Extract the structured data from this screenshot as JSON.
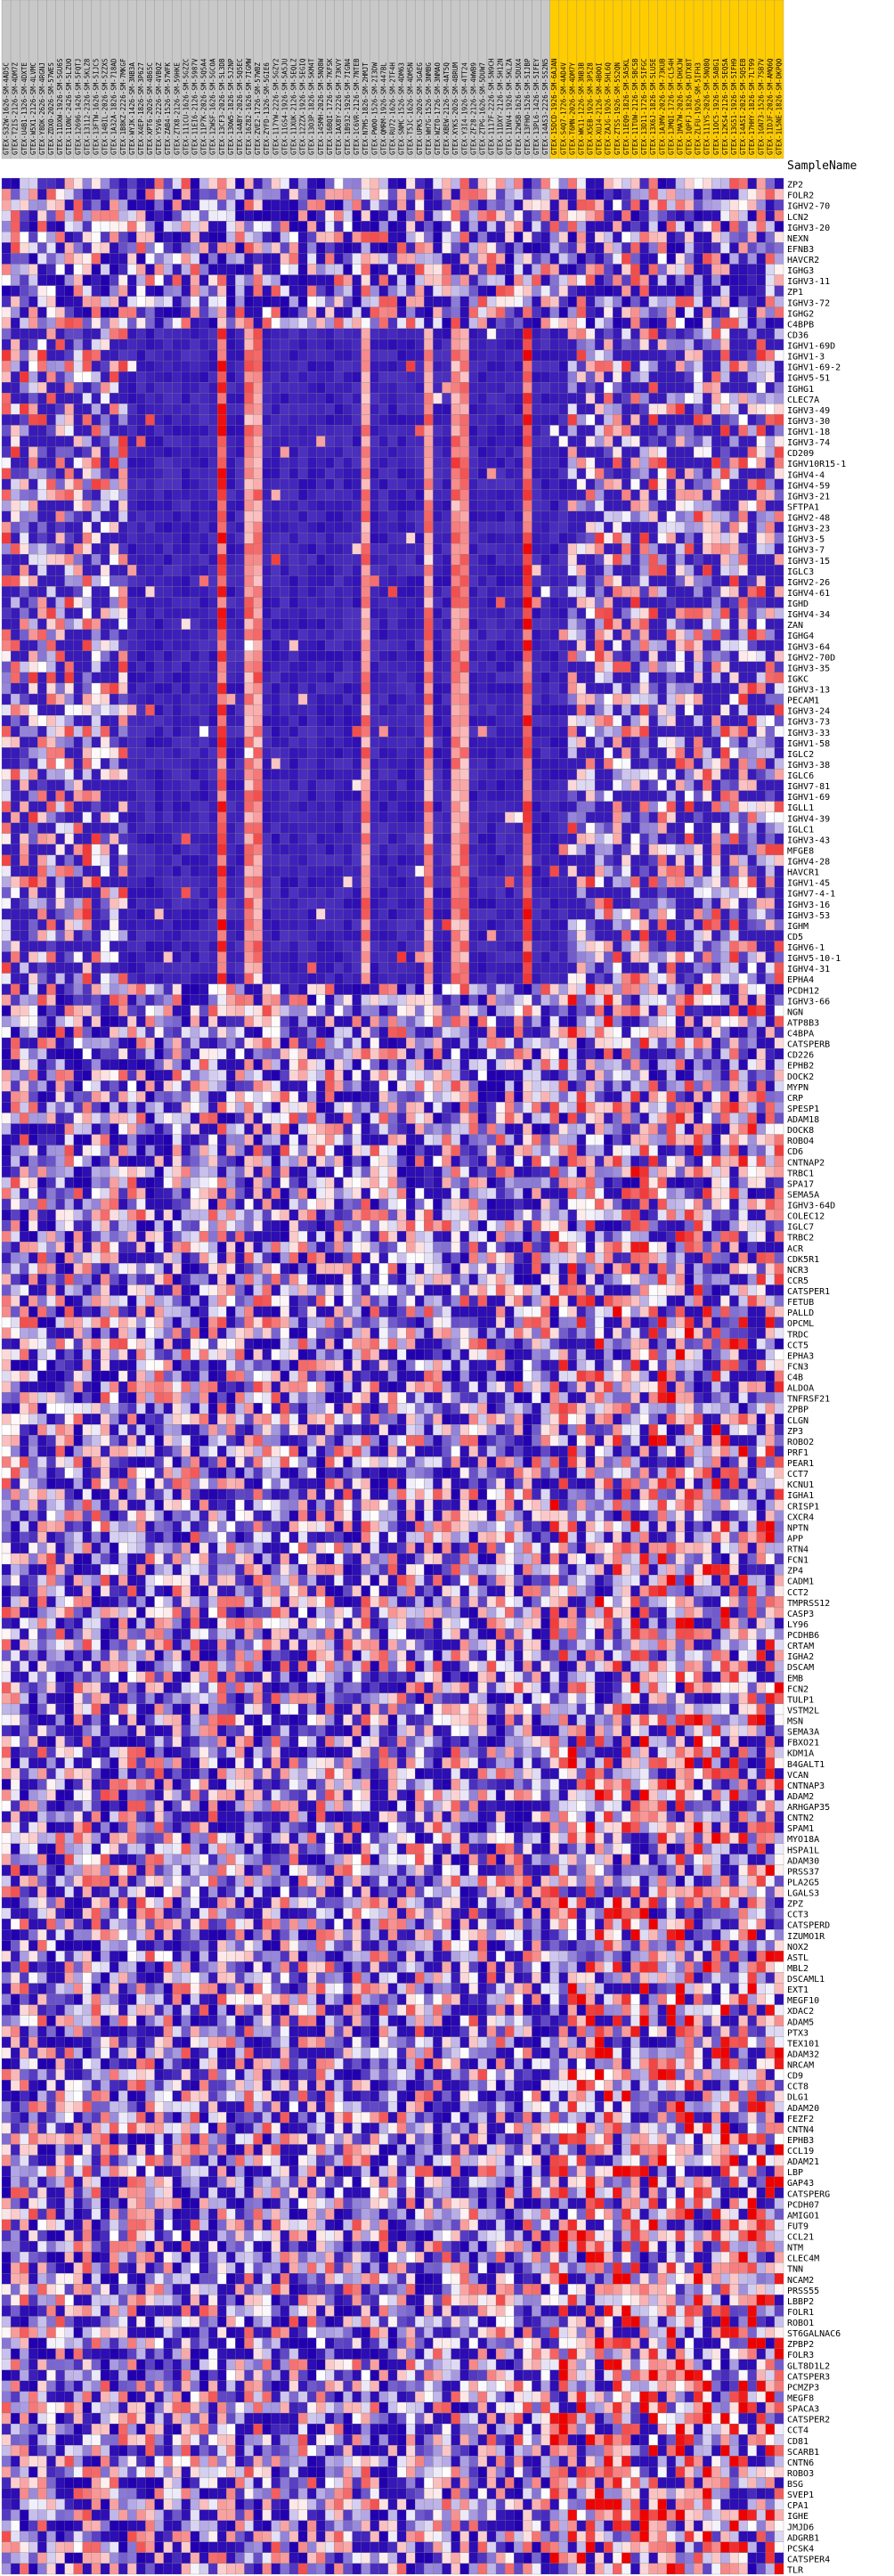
{
  "sample_name_label": "SampleName",
  "column_labels": [
    "GTEX-S32W-1626-SM-4AD5C",
    "GTEX-T2IS-2126-SM-4DM7Z",
    "GTEX-U4B1-1326-SM-4DXTE",
    "GTEX-W5X1-2126-SM-4LVMC",
    "GTEX-Y8DK-2626-SM-4RGNJ",
    "GTEX-ZDXO-2026-SM-57WES",
    "GTEX-11DXW-1926-SM-5GU6S",
    "GTEX-11ONC-2426-SM-5LZUO",
    "GTEX-12696-1426-SM-5FQTJ",
    "GTEX-13112-2326-SM-5KLZ8",
    "GTEX-13FTW-1626-SM-5IJC5",
    "GTEX-14BIL-2026-SM-5ZZXS",
    "GTEX-1A32A-1826-SM-718AD",
    "GTEX-1B8KZ-2226-SM-7MKGF",
    "GTEX-WYJK-1426-SM-3NB3A",
    "GTEX-X4EP-1826-SM-3P627",
    "GTEX-XPT6-2026-SM-4B65C",
    "GTEX-Y5V6-2226-SM-4VBQZ",
    "GTEX-ZAB4-1526-SM-57WFK",
    "GTEX-ZTX8-2126-SM-59HKE",
    "GTEX-111CU-1626-SM-5GZZC",
    "GTEX-11EI6-2126-SM-5987V",
    "GTEX-11P7K-2026-SM-5Q5A4",
    "GTEX-12WSF-1626-SM-5GCOA",
    "GTEX-13CF3-2026-SM-5L3DB",
    "GTEX-13OW5-1826-SM-5J2NP",
    "GTEX-14ABY-2026-SM-5Q5EC",
    "GTEX-16Z82-1626-SM-7IGMW",
    "GTEX-ZVE2-1726-SM-57WBZ",
    "GTEX-ZYFD-1326-SM-5GIE6",
    "GTEX-117YW-2226-SM-5GZY2",
    "GTEX-11GS4-1926-SM-5A5JU",
    "GTEX-11XUK-2126-SM-5EQLZ",
    "GTEX-12ZZX-1926-SM-5EGIQ",
    "GTEX-13O3P-1826-SM-5KM4T",
    "GTEX-145MH-2026-SM-5NQ8W",
    "GTEX-16BQI-1726-SM-7KFSK",
    "GTEX-1AX8Y-2226-SM-73KVY",
    "GTEX-1B932-1926-SM-7IGN4",
    "GTEX-1C6VR-2126-SM-7NTEB",
    "GTEX-N7MS-1826-SM-2HMJT",
    "GTEX-PWOO-1526-SM-2I3DW",
    "GTEX-QMRM-1926-SM-447BL",
    "GTEX-RU72-1626-SM-2TF4H",
    "GTEX-SNMC-1526-SM-4DM63",
    "GTEX-T5JC-1626-SM-4DM5N",
    "GTEX-UPK5-2026-SM-3GAEG",
    "GTEX-WH7G-1526-SM-3NMBG",
    "GTEX-WZTO-1726-SM-3NMAO",
    "GTEX-XBEW-2126-SM-4AT5Q",
    "GTEX-XYKS-2026-SM-4BRUM",
    "GTEX-Y3I4-1926-SM-4TT24",
    "GTEX-ZF28-2126-SM-4WWB9",
    "GTEX-ZTPG-1626-SM-5DUW7",
    "GTEX-1117F-2226-SM-5N9CH",
    "GTEX-11DXY-2126-SM-5H12N",
    "GTEX-11NV4-1926-SM-5KLZA",
    "GTEX-12WSB-1626-SM-5DUX4",
    "GTEX-13FHO-1526-SM-5IJBP",
    "GTEX-13PL6-1426-SM-5IFEY",
    "GTEX-14AS3-2226-SM-5S2N5",
    "GTEX-15DCD-1926-SM-6AJAN",
    "GTEX-S4Q7-1726-SM-4AD4V",
    "GTEX-T6MN-2026-SM-4DM7Y",
    "GTEX-WK11-1226-SM-3NB3B",
    "GTEX-X5EB-1926-SM-3P5Z8",
    "GTEX-XUJ4-2126-SM-4BOOI",
    "GTEX-ZAJG-1926-SM-5HL6Q",
    "GTEX-ZTSS-1926-SM-5S2QN",
    "GTEX-11EQ9-1826-SM-5A5KL",
    "GTEX-11TUW-2126-SM-5BC5B",
    "GTEX-13D11-1726-SM-5IFGC",
    "GTEX-13X6J-1826-SM-5LU5E",
    "GTEX-1A3MV-2026-SM-73KUB",
    "GTEX-1JMQI-1726-SM-CL54H",
    "GTEX-1MA7W-2026-SM-DHXJW",
    "GTEX-1QPFJ-1826-SM-DTX8T",
    "GTEX-ZLFU-1926-SM-5IFH3",
    "GTEX-111YS-2026-SM-5NQ8Q",
    "GTEX-11OC5-1926-SM-5ABG1",
    "GTEX-12KS4-2126-SM-5EQ5A",
    "GTEX-13G51-1926-SM-5IFH9",
    "GTEX-14ASI-2026-SM-5Q5EB",
    "GTEX-17HHY-1826-SM-7LT99",
    "GTEX-1GN73-1526-SM-7SB7V",
    "GTEX-1IDJF-2026-SM-AMQ6Q",
    "GTEX-1L5NE-1826-SM-DKPQO"
  ],
  "row_labels": [
    "ZP2",
    "FOLR2",
    "IGHV2-70",
    "LCN2",
    "IGHV3-20",
    "NEXN",
    "EFNB3",
    "HAVCR2",
    "IGHG3",
    "IGHV3-11",
    "ZP1",
    "IGHV3-72",
    "IGHG2",
    "C4BPB",
    "CD36",
    "IGHV1-69D",
    "IGHV1-3",
    "IGHV1-69-2",
    "IGHV5-51",
    "IGHG1",
    "CLEC7A",
    "IGHV3-49",
    "IGHV3-30",
    "IGHV1-18",
    "IGHV3-74",
    "CD209",
    "IGHV10R15-1",
    "IGHV4-4",
    "IGHV4-59",
    "IGHV3-21",
    "SFTPA1",
    "IGHV2-48",
    "IGHV3-23",
    "IGHV3-5",
    "IGHV3-7",
    "IGHV3-15",
    "IGLC3",
    "IGHV2-26",
    "IGHV4-61",
    "IGHD",
    "IGHV4-34",
    "ZAN",
    "IGHG4",
    "IGHV3-64",
    "IGHV2-70D",
    "IGHV3-35",
    "IGKC",
    "IGHV3-13",
    "PECAM1",
    "IGHV3-24",
    "IGHV3-73",
    "IGHV3-33",
    "IGHV1-58",
    "IGLC2",
    "IGHV3-38",
    "IGLC6",
    "IGHV7-81",
    "IGHV1-69",
    "IGLL1",
    "IGHV4-39",
    "IGLC1",
    "IGHV3-43",
    "MFGE8",
    "IGHV4-28",
    "HAVCR1",
    "IGHV1-45",
    "IGHV7-4-1",
    "IGHV3-16",
    "IGHV3-53",
    "IGHM",
    "CD5",
    "IGHV6-1",
    "IGHV5-10-1",
    "IGHV4-31",
    "EPHA4",
    "PCDH12",
    "IGHV3-66",
    "NGN",
    "ATP8B3",
    "C4BPA",
    "CATSPERB",
    "CD226",
    "EPHB2",
    "DOCK2",
    "MYPN",
    "CRP",
    "SPESP1",
    "ADAM18",
    "DOCK8",
    "ROBO4",
    "CD6",
    "CNTNAP2",
    "TRBC1",
    "SPA17",
    "SEMA5A",
    "IGHV3-64D",
    "COLEC12",
    "IGLC7",
    "TRBC2",
    "ACR",
    "CDK5R1",
    "NCR3",
    "CCR5",
    "CATSPER1",
    "FETUB",
    "PALLD",
    "OPCML",
    "TRDC",
    "CCT5",
    "EPHA3",
    "FCN3",
    "C4B",
    "ALDOA",
    "TNFRSF21",
    "ZPBP",
    "CLGN",
    "ZP3",
    "ROBO2",
    "PRF1",
    "PEAR1",
    "CCT7",
    "KCNU1",
    "IGHA1",
    "CRISP1",
    "CXCR4",
    "NPTN",
    "APP",
    "RTN4",
    "FCN1",
    "ZP4",
    "CADM1",
    "CCT2",
    "TMPRSS12",
    "CASP3",
    "LY96",
    "PCDHB6",
    "CRTAM",
    "IGHA2",
    "DSCAM",
    "EMB",
    "FCN2",
    "TULP1",
    "VSTM2L",
    "MSN",
    "SEMA3A",
    "FBXO21",
    "KDM1A",
    "B4GALT1",
    "VCAN",
    "CNTNAP3",
    "ADAM2",
    "ARHGAP35",
    "CNTN2",
    "SPAM1",
    "MYO18A",
    "HSPA1L",
    "ADAM30",
    "PRSS37",
    "PLA2G5",
    "LGALS3",
    "ZPZ",
    "CCT3",
    "CATSPERD",
    "IZUMO1R",
    "NOX2",
    "ASTL",
    "MBL2",
    "DSCAML1",
    "EXT1",
    "MEGF10",
    "XDAC2",
    "ADAM5",
    "PTX3",
    "TEX101",
    "ADAM32",
    "NRCAM",
    "CD9",
    "CCT8",
    "DLG1",
    "ADAM20",
    "FEZF2",
    "CNTN4",
    "EPHB3",
    "CCL19",
    "ADAM21",
    "LBP",
    "GAP43",
    "CATSPERG",
    "PCDH07",
    "AMIGO1",
    "FUT9",
    "CCL21",
    "NTM",
    "CLEC4M",
    "TNN",
    "NCAM2",
    "PRSS55",
    "LBBP2",
    "FOLR1",
    "ROBO1",
    "ST6GALNAC6",
    "ZPBP2",
    "FOLR3",
    "GLT8D1L2",
    "CATSPER3",
    "PCMZP3",
    "MEGF8",
    "SPACA3",
    "CATSPER2",
    "CCT4",
    "CD81",
    "SCARB1",
    "CNTN6",
    "ROBO3",
    "BSG",
    "SVEP1",
    "CPA1",
    "IGHE",
    "JMJD6",
    "ADGRB1",
    "PCSK4",
    "CATSPER4",
    "TLR"
  ],
  "chart_data": {
    "type": "heatmap",
    "color_scale": [
      "#2200b0",
      "#ffffff",
      "#ee0000"
    ],
    "highlight_color": "#ffcc00",
    "grid": true
  }
}
